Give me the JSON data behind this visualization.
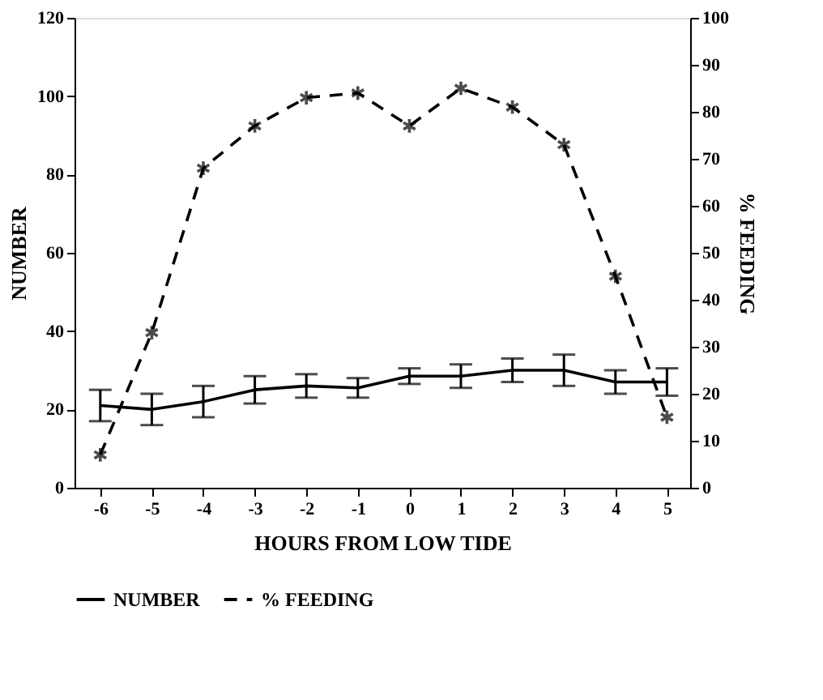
{
  "chart_data": {
    "type": "line",
    "xlabel": "HOURS FROM LOW TIDE",
    "ylabel": "NUMBER",
    "y2label": "% FEEDING",
    "x": [
      -6,
      -5,
      -4,
      -3,
      -2,
      -1,
      0,
      1,
      2,
      3,
      4,
      5
    ],
    "series": [
      {
        "name": "NUMBER",
        "color": "#000000",
        "values": [
          21,
          20,
          22,
          25,
          26,
          25.5,
          28.5,
          28.5,
          30,
          30,
          27,
          27
        ],
        "errors": [
          4,
          4,
          4,
          3.5,
          3,
          2.5,
          2,
          3,
          3,
          4,
          3,
          3.5
        ],
        "marker": "none",
        "line_style": "solid"
      },
      {
        "name": "% FEEDING",
        "color": "#000000",
        "axis": "y2",
        "values": [
          7,
          33,
          68,
          77,
          83,
          84,
          77,
          85,
          81,
          73,
          45,
          15
        ],
        "marker": "cross",
        "line_style": "dashed"
      }
    ],
    "xlim": [
      -6.5,
      5.45
    ],
    "xticks": [
      -6,
      -5,
      -4,
      -3,
      -2,
      -1,
      0,
      1,
      2,
      3,
      4,
      5
    ],
    "ylim": [
      0,
      120
    ],
    "yticks": [
      0,
      20,
      40,
      60,
      80,
      100,
      120
    ],
    "y2lim": [
      0,
      100
    ],
    "y2ticks": [
      0,
      10,
      20,
      30,
      40,
      50,
      60,
      70,
      80,
      90,
      100
    ],
    "grid": false,
    "legend": "bottom"
  }
}
